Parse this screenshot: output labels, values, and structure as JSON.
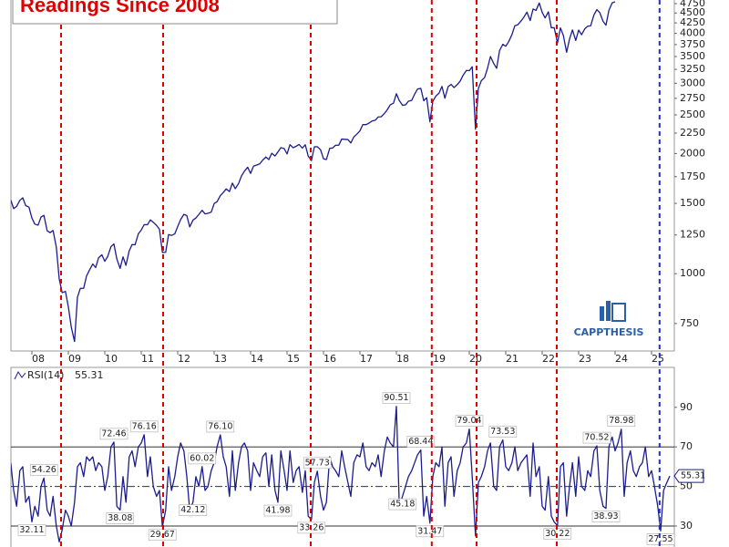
{
  "chart_data": [
    {
      "type": "line",
      "title": "Readings Since 2008",
      "logo": "CAPPTHESIS",
      "log_scale": true,
      "color": "#1c1c8e",
      "xlim": [
        2007.425,
        2025.625
      ],
      "ylim": [
        640,
        4850
      ],
      "xticks": [
        {
          "value": 2008,
          "label": "08"
        },
        {
          "value": 2009,
          "label": "09"
        },
        {
          "value": 2010,
          "label": "10"
        },
        {
          "value": 2011,
          "label": "11"
        },
        {
          "value": 2012,
          "label": "12"
        },
        {
          "value": 2013,
          "label": "13"
        },
        {
          "value": 2014,
          "label": "14"
        },
        {
          "value": 2015,
          "label": "15"
        },
        {
          "value": 2016,
          "label": "16"
        },
        {
          "value": 2017,
          "label": "17"
        },
        {
          "value": 2018,
          "label": "18"
        },
        {
          "value": 2019,
          "label": "19"
        },
        {
          "value": 2020,
          "label": "20"
        },
        {
          "value": 2021,
          "label": "21"
        },
        {
          "value": 2022,
          "label": "22"
        },
        {
          "value": 2023,
          "label": "23"
        },
        {
          "value": 2024,
          "label": "24"
        },
        {
          "value": 2025,
          "label": "25"
        }
      ],
      "yticks": [
        750,
        1000,
        1250,
        1500,
        1750,
        2000,
        2250,
        2500,
        2750,
        3000,
        3250,
        3500,
        3750,
        4000,
        4250,
        4500,
        4750
      ],
      "event_lines": [
        {
          "x": 2008.8,
          "color": "#e00000"
        },
        {
          "x": 2011.6,
          "color": "#e00000"
        },
        {
          "x": 2015.65,
          "color": "#e00000"
        },
        {
          "x": 2018.97,
          "color": "#e00000"
        },
        {
          "x": 2020.2,
          "color": "#e00000"
        },
        {
          "x": 2022.4,
          "color": "#e00000"
        },
        {
          "x": 2025.22,
          "color": "#1f2fd0"
        }
      ],
      "x": [
        2007.42,
        2007.5,
        2007.58,
        2007.67,
        2007.75,
        2007.83,
        2007.92,
        2008,
        2008.08,
        2008.17,
        2008.25,
        2008.33,
        2008.42,
        2008.5,
        2008.58,
        2008.67,
        2008.75,
        2008.83,
        2008.92,
        2009,
        2009.08,
        2009.17,
        2009.25,
        2009.33,
        2009.42,
        2009.5,
        2009.58,
        2009.67,
        2009.75,
        2009.83,
        2009.92,
        2010,
        2010.08,
        2010.17,
        2010.25,
        2010.33,
        2010.42,
        2010.5,
        2010.58,
        2010.67,
        2010.75,
        2010.83,
        2010.92,
        2011,
        2011.08,
        2011.17,
        2011.25,
        2011.33,
        2011.42,
        2011.5,
        2011.58,
        2011.67,
        2011.75,
        2011.83,
        2011.92,
        2012,
        2012.08,
        2012.17,
        2012.25,
        2012.33,
        2012.42,
        2012.5,
        2012.58,
        2012.67,
        2012.75,
        2012.83,
        2012.92,
        2013,
        2013.08,
        2013.17,
        2013.25,
        2013.33,
        2013.42,
        2013.5,
        2013.58,
        2013.67,
        2013.75,
        2013.83,
        2013.92,
        2014,
        2014.08,
        2014.17,
        2014.25,
        2014.33,
        2014.42,
        2014.5,
        2014.58,
        2014.67,
        2014.75,
        2014.83,
        2014.92,
        2015,
        2015.08,
        2015.17,
        2015.25,
        2015.33,
        2015.42,
        2015.5,
        2015.58,
        2015.67,
        2015.75,
        2015.83,
        2015.92,
        2016,
        2016.08,
        2016.17,
        2016.25,
        2016.33,
        2016.42,
        2016.5,
        2016.58,
        2016.67,
        2016.75,
        2016.83,
        2016.92,
        2017,
        2017.08,
        2017.17,
        2017.25,
        2017.33,
        2017.42,
        2017.5,
        2017.58,
        2017.67,
        2017.75,
        2017.83,
        2017.92,
        2018,
        2018.08,
        2018.17,
        2018.25,
        2018.33,
        2018.42,
        2018.5,
        2018.58,
        2018.67,
        2018.75,
        2018.83,
        2018.92,
        2019,
        2019.08,
        2019.17,
        2019.25,
        2019.33,
        2019.42,
        2019.5,
        2019.58,
        2019.67,
        2019.75,
        2019.83,
        2019.92,
        2020,
        2020.08,
        2020.17,
        2020.25,
        2020.33,
        2020.42,
        2020.5,
        2020.58,
        2020.67,
        2020.75,
        2020.83,
        2020.92,
        2021,
        2021.08,
        2021.17,
        2021.25,
        2021.33,
        2021.42,
        2021.5,
        2021.58,
        2021.67,
        2021.75,
        2021.83,
        2021.92,
        2022,
        2022.08,
        2022.17,
        2022.25,
        2022.33,
        2022.42,
        2022.5,
        2022.58,
        2022.67,
        2022.75,
        2022.83,
        2022.92,
        2023,
        2023.08,
        2023.17,
        2023.25,
        2023.33,
        2023.42,
        2023.5,
        2023.58,
        2023.67,
        2023.75,
        2023.83,
        2023.92,
        2024
      ],
      "values": [
        1530,
        1455,
        1474,
        1527,
        1549,
        1481,
        1468,
        1378,
        1331,
        1323,
        1386,
        1400,
        1280,
        1267,
        1283,
        1166,
        969,
        896,
        903,
        826,
        735,
        676,
        873,
        919,
        919,
        987,
        1021,
        1057,
        1036,
        1096,
        1115,
        1074,
        1104,
        1169,
        1187,
        1089,
        1031,
        1102,
        1049,
        1141,
        1183,
        1181,
        1258,
        1286,
        1327,
        1326,
        1364,
        1345,
        1321,
        1292,
        1130,
        1131,
        1253,
        1247,
        1258,
        1312,
        1366,
        1408,
        1398,
        1310,
        1362,
        1379,
        1407,
        1441,
        1412,
        1416,
        1426,
        1498,
        1515,
        1569,
        1597,
        1631,
        1606,
        1686,
        1633,
        1682,
        1757,
        1806,
        1848,
        1783,
        1859,
        1872,
        1884,
        1924,
        1960,
        1931,
        2003,
        1972,
        2018,
        2068,
        2059,
        1995,
        2105,
        2068,
        2086,
        2107,
        2063,
        2104,
        1972,
        1920,
        2079,
        2080,
        2044,
        1940,
        1932,
        2060,
        2065,
        2097,
        2099,
        2174,
        2171,
        2168,
        2126,
        2199,
        2239,
        2279,
        2364,
        2363,
        2384,
        2412,
        2423,
        2470,
        2472,
        2519,
        2575,
        2648,
        2674,
        2824,
        2714,
        2641,
        2648,
        2705,
        2718,
        2816,
        2902,
        2914,
        2712,
        2760,
        2400,
        2704,
        2784,
        2834,
        2946,
        2752,
        2942,
        2980,
        2926,
        2977,
        3038,
        3141,
        3231,
        3226,
        3300,
        2300,
        2912,
        3044,
        3100,
        3271,
        3500,
        3363,
        3270,
        3622,
        3756,
        3714,
        3811,
        3973,
        4181,
        4204,
        4298,
        4395,
        4523,
        4308,
        4605,
        4567,
        4766,
        4516,
        4374,
        4530,
        4132,
        4132,
        3785,
        4130,
        3955,
        3586,
        3872,
        4080,
        3840,
        4077,
        3970,
        4109,
        4169,
        4180,
        4450,
        4589,
        4508,
        4288,
        4194,
        4568,
        4770,
        4800
      ]
    },
    {
      "type": "line",
      "title": "RSI(14)",
      "last_value": 55.31,
      "color": "#1c1c8e",
      "xlim": [
        2007.425,
        2025.625
      ],
      "ylim": [
        19.4,
        110.2
      ],
      "yticks": [
        30,
        50,
        70,
        90
      ],
      "ref_lines": [
        30,
        50,
        70
      ],
      "annotations": [
        {
          "x": 2008,
          "value": 32.11
        },
        {
          "x": 2008.33,
          "value": 54.26
        },
        {
          "x": 2010.25,
          "value": 72.46
        },
        {
          "x": 2010.42,
          "value": 38.08
        },
        {
          "x": 2011.08,
          "value": 76.16
        },
        {
          "x": 2011.58,
          "value": 29.67
        },
        {
          "x": 2012.42,
          "value": 42.12
        },
        {
          "x": 2012.67,
          "value": 60.02
        },
        {
          "x": 2013.17,
          "value": 76.1,
          "label": "76.10"
        },
        {
          "x": 2014.75,
          "value": 41.98
        },
        {
          "x": 2015.67,
          "value": 33.26
        },
        {
          "x": 2015.83,
          "value": 57.73
        },
        {
          "x": 2018,
          "value": 90.51
        },
        {
          "x": 2018.17,
          "value": 45.18
        },
        {
          "x": 2018.67,
          "value": 68.44
        },
        {
          "x": 2018.92,
          "value": 31.47
        },
        {
          "x": 2020,
          "value": 79.04
        },
        {
          "x": 2020.92,
          "value": 73.53
        },
        {
          "x": 2022.42,
          "value": 30.22
        },
        {
          "x": 2023.5,
          "value": 70.52
        },
        {
          "x": 2023.75,
          "value": 38.93
        },
        {
          "x": 2024.17,
          "value": 78.98
        },
        {
          "x": 2025.25,
          "value": 27.55
        }
      ],
      "x": [
        2007.42,
        2007.5,
        2007.58,
        2007.67,
        2007.75,
        2007.83,
        2007.92,
        2008,
        2008.08,
        2008.17,
        2008.25,
        2008.33,
        2008.42,
        2008.5,
        2008.58,
        2008.67,
        2008.75,
        2008.83,
        2008.92,
        2009,
        2009.08,
        2009.17,
        2009.25,
        2009.33,
        2009.42,
        2009.5,
        2009.58,
        2009.67,
        2009.75,
        2009.83,
        2009.92,
        2010,
        2010.08,
        2010.17,
        2010.25,
        2010.33,
        2010.42,
        2010.5,
        2010.58,
        2010.67,
        2010.75,
        2010.83,
        2010.92,
        2011,
        2011.08,
        2011.17,
        2011.25,
        2011.33,
        2011.42,
        2011.5,
        2011.58,
        2011.67,
        2011.75,
        2011.83,
        2011.92,
        2012,
        2012.08,
        2012.17,
        2012.25,
        2012.33,
        2012.42,
        2012.5,
        2012.58,
        2012.67,
        2012.75,
        2012.83,
        2012.92,
        2013,
        2013.08,
        2013.17,
        2013.25,
        2013.33,
        2013.42,
        2013.5,
        2013.58,
        2013.67,
        2013.75,
        2013.83,
        2013.92,
        2014,
        2014.08,
        2014.17,
        2014.25,
        2014.33,
        2014.42,
        2014.5,
        2014.58,
        2014.67,
        2014.75,
        2014.83,
        2014.92,
        2015,
        2015.08,
        2015.17,
        2015.25,
        2015.33,
        2015.42,
        2015.5,
        2015.58,
        2015.67,
        2015.75,
        2015.83,
        2015.92,
        2016,
        2016.08,
        2016.17,
        2016.25,
        2016.33,
        2016.42,
        2016.5,
        2016.58,
        2016.67,
        2016.75,
        2016.83,
        2016.92,
        2017,
        2017.08,
        2017.17,
        2017.25,
        2017.33,
        2017.42,
        2017.5,
        2017.58,
        2017.67,
        2017.75,
        2017.83,
        2017.92,
        2018,
        2018.08,
        2018.17,
        2018.25,
        2018.33,
        2018.42,
        2018.5,
        2018.58,
        2018.67,
        2018.75,
        2018.83,
        2018.92,
        2019,
        2019.08,
        2019.17,
        2019.25,
        2019.33,
        2019.42,
        2019.5,
        2019.58,
        2019.67,
        2019.75,
        2019.83,
        2019.92,
        2020,
        2020.08,
        2020.17,
        2020.25,
        2020.33,
        2020.42,
        2020.5,
        2020.58,
        2020.67,
        2020.75,
        2020.83,
        2020.92,
        2021,
        2021.08,
        2021.17,
        2021.25,
        2021.33,
        2021.42,
        2021.5,
        2021.58,
        2021.67,
        2021.75,
        2021.83,
        2021.92,
        2022,
        2022.08,
        2022.17,
        2022.25,
        2022.33,
        2022.42,
        2022.5,
        2022.58,
        2022.67,
        2022.75,
        2022.83,
        2022.92,
        2023,
        2023.08,
        2023.17,
        2023.25,
        2023.33,
        2023.42,
        2023.5,
        2023.58,
        2023.67,
        2023.75,
        2023.83,
        2023.92,
        2024,
        2024.08,
        2024.17,
        2024.25,
        2024.33,
        2024.42,
        2024.5,
        2024.58,
        2024.67,
        2024.75,
        2024.83,
        2024.92,
        2025,
        2025.08,
        2025.17,
        2025.25,
        2025.33,
        2025.42,
        2025.5
      ],
      "values": [
        62,
        48,
        40,
        58,
        60,
        42,
        45,
        32.11,
        40,
        35,
        50,
        54.26,
        38,
        35,
        45,
        30,
        22,
        28,
        38,
        35,
        30,
        42,
        60,
        62,
        55,
        65,
        63,
        65,
        58,
        62,
        60,
        48,
        55,
        70,
        72.46,
        40,
        38.08,
        55,
        42,
        65,
        68,
        60,
        70,
        72,
        76.16,
        55,
        65,
        50,
        45,
        48,
        29.67,
        38,
        60,
        48,
        55,
        65,
        72,
        68,
        55,
        38,
        42.12,
        55,
        50,
        60.02,
        48,
        50,
        58,
        62,
        70,
        76.1,
        65,
        60,
        45,
        68,
        48,
        62,
        70,
        72,
        68,
        48,
        62,
        58,
        55,
        65,
        67,
        50,
        66,
        48,
        41.98,
        68,
        58,
        48,
        68,
        52,
        58,
        60,
        47,
        58,
        35,
        33.26,
        52,
        57.73,
        45,
        38,
        42,
        65,
        60,
        58,
        55,
        68,
        60,
        52,
        45,
        62,
        66,
        65,
        72,
        60,
        58,
        62,
        60,
        66,
        55,
        68,
        75,
        72,
        70,
        90.51,
        40,
        45.18,
        50,
        55,
        58,
        62,
        66,
        68.44,
        35,
        45,
        31.47,
        55,
        62,
        60,
        70,
        40,
        62,
        65,
        45,
        58,
        62,
        70,
        72,
        79.04,
        55,
        25,
        52,
        55,
        60,
        68,
        72,
        50,
        48,
        70,
        73.53,
        60,
        58,
        62,
        70,
        58,
        62,
        64,
        66,
        45,
        72,
        55,
        60,
        40,
        38,
        55,
        35,
        32,
        30.22,
        60,
        62,
        35,
        50,
        62,
        45,
        65,
        50,
        48,
        58,
        55,
        68,
        70.52,
        48,
        40,
        38.93,
        70,
        75,
        68,
        72,
        78.98,
        45,
        62,
        68,
        58,
        55,
        60,
        62,
        70,
        55,
        58,
        50,
        40,
        27.55,
        48,
        52,
        55.31
      ]
    }
  ]
}
